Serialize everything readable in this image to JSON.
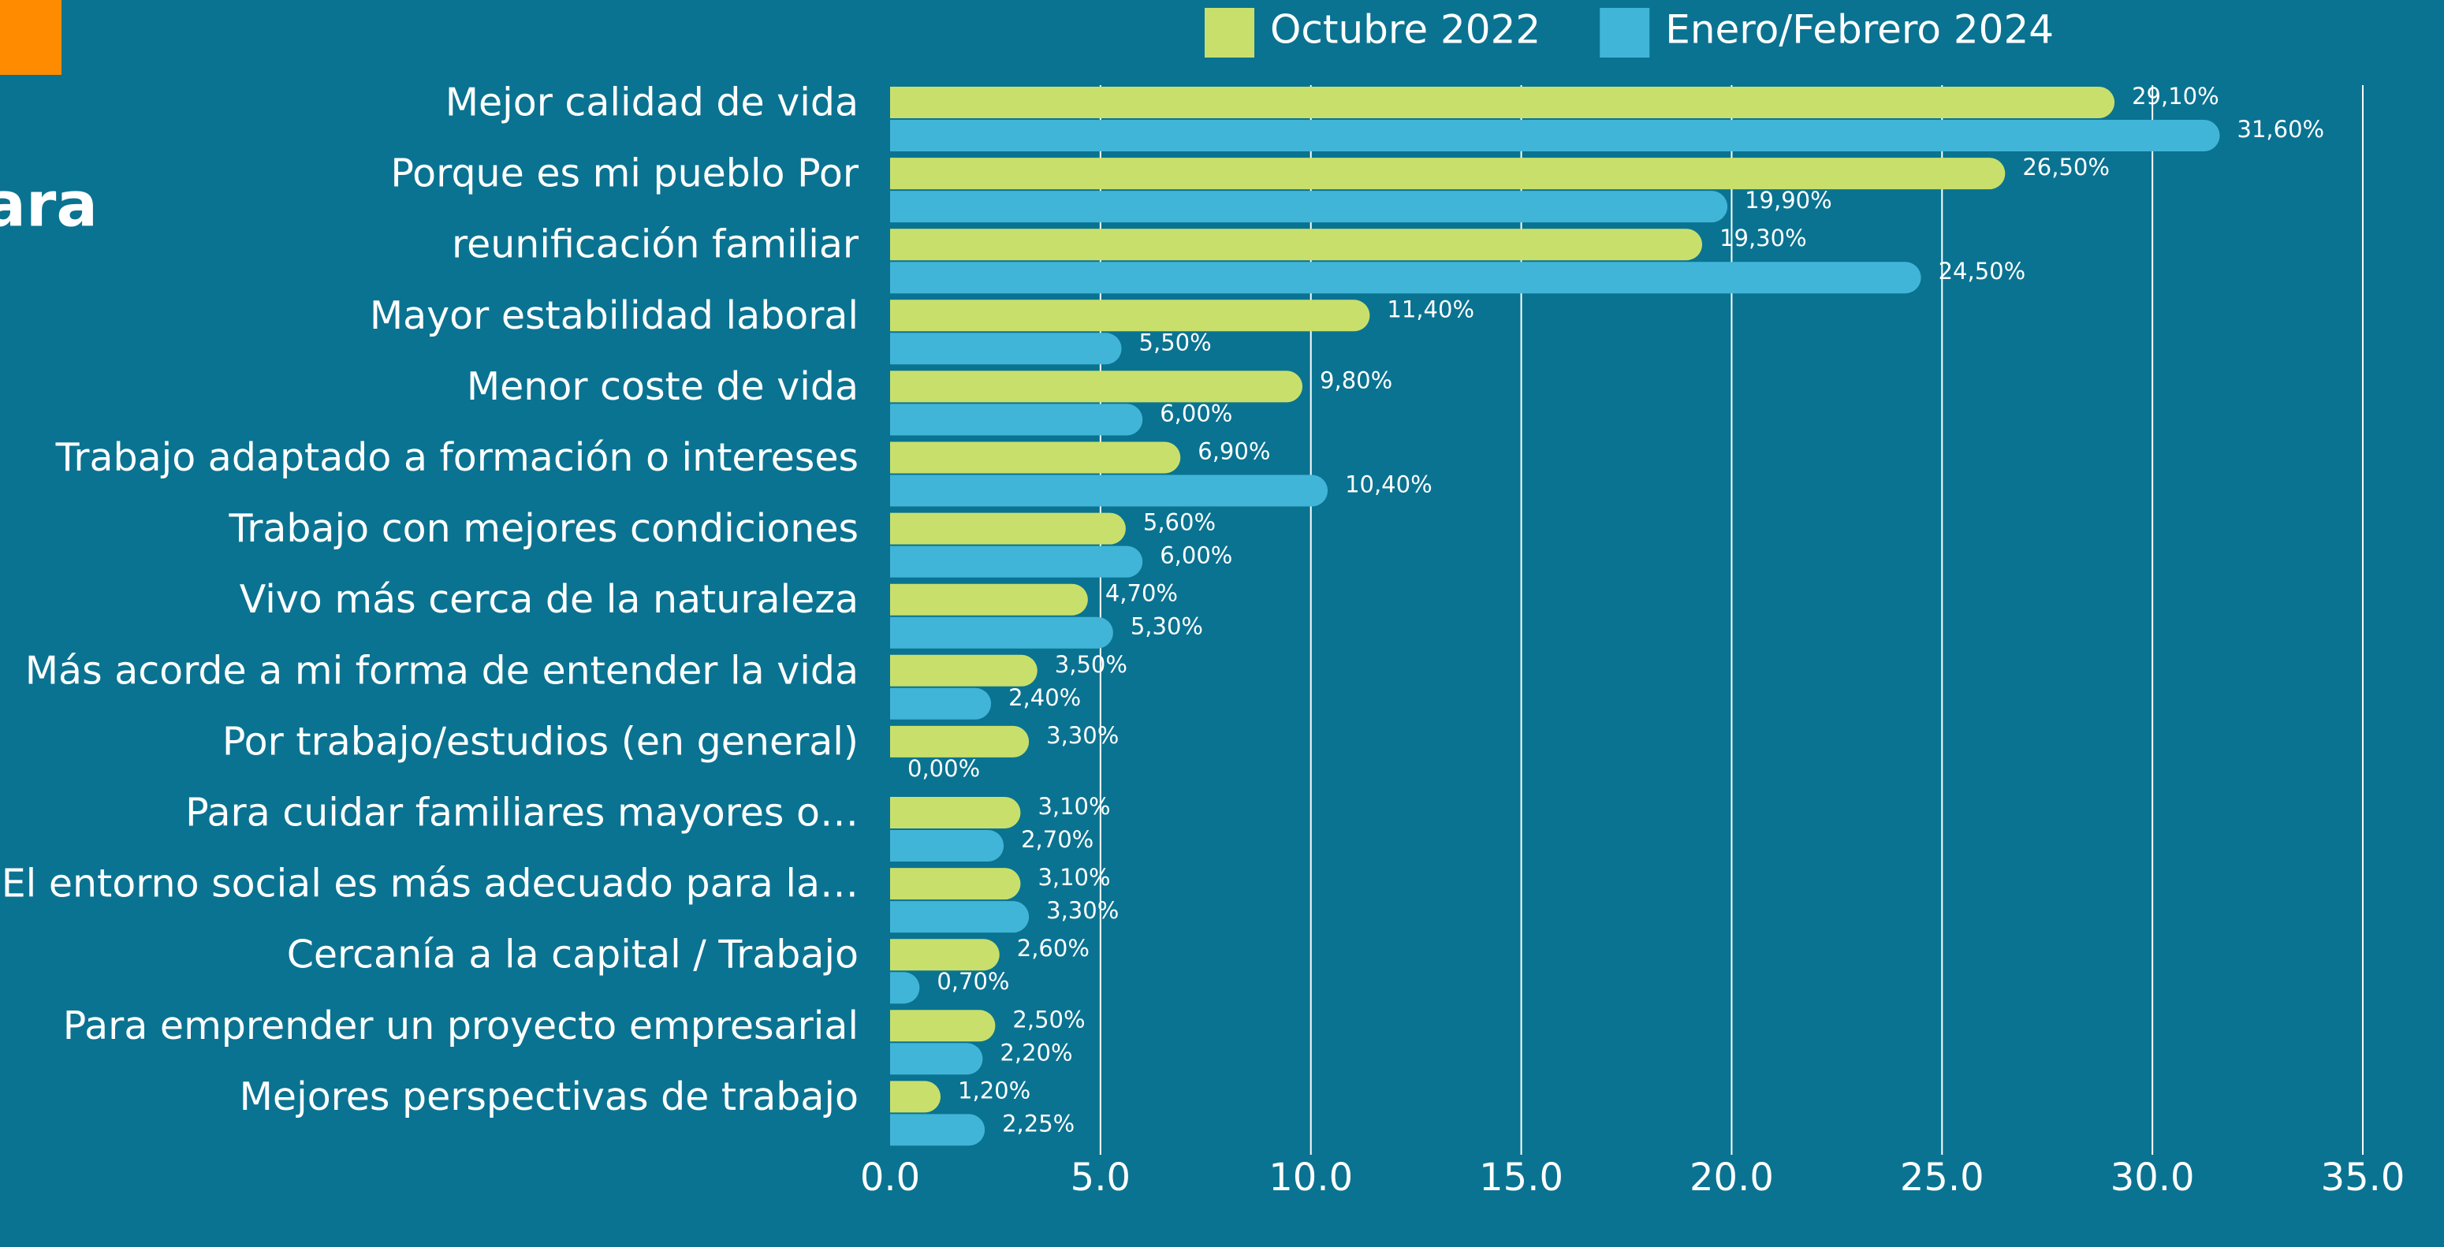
{
  "chart_data": {
    "type": "bar",
    "orientation": "horizontal",
    "title": "ara",
    "categories": [
      "Mejor calidad de vida",
      "Porque es mi pueblo Por",
      "reunificación familiar",
      "Mayor estabilidad laboral",
      "Menor coste de vida",
      "Trabajo adaptado a formación o intereses",
      "Trabajo con mejores condiciones",
      "Vivo más cerca de la naturaleza",
      "Más acorde a mi forma de entender la vida",
      "Por trabajo/estudios (en general)",
      "Para cuidar familiares mayores o…",
      "El entorno social es más adecuado para la…",
      "Cercanía a la capital / Trabajo",
      "Para emprender un proyecto empresarial",
      "Mejores perspectivas de trabajo"
    ],
    "series": [
      {
        "name": "Octubre 2022",
        "color": "#c8e06b",
        "values": [
          29.1,
          26.5,
          19.3,
          11.4,
          9.8,
          6.9,
          5.6,
          4.7,
          3.5,
          3.3,
          3.1,
          3.1,
          2.6,
          2.5,
          1.2
        ],
        "value_labels": [
          "29,10%",
          "26,50%",
          "19,30%",
          "11,40%",
          "9,80%",
          "6,90%",
          "5,60%",
          "4,70%",
          "3,50%",
          "3,30%",
          "3,10%",
          "3,10%",
          "2,60%",
          "2,50%",
          "1,20%"
        ]
      },
      {
        "name": "Enero/Febrero 2024",
        "color": "#41b5d8",
        "values": [
          31.6,
          19.9,
          24.5,
          5.5,
          6.0,
          10.4,
          6.0,
          5.3,
          2.4,
          0.0,
          2.7,
          3.3,
          0.7,
          2.2,
          2.25
        ],
        "value_labels": [
          "31,60%",
          "19,90%",
          "24,50%",
          "5,50%",
          "6,00%",
          "10,40%",
          "6,00%",
          "5,30%",
          "2,40%",
          "0,00%",
          "2,70%",
          "3,30%",
          "0,70%",
          "2,20%",
          "2,25%"
        ]
      }
    ],
    "xlim": [
      0,
      35
    ],
    "xticks": [
      {
        "value": 0,
        "label": "0.0"
      },
      {
        "value": 5,
        "label": "5.0"
      },
      {
        "value": 10,
        "label": "10.0"
      },
      {
        "value": 15,
        "label": "15.0"
      },
      {
        "value": 20,
        "label": "20.0"
      },
      {
        "value": 25,
        "label": "25.0"
      },
      {
        "value": 30,
        "label": "30.0"
      },
      {
        "value": 35,
        "label": "35.0"
      }
    ],
    "grid": true,
    "legend": "top"
  }
}
